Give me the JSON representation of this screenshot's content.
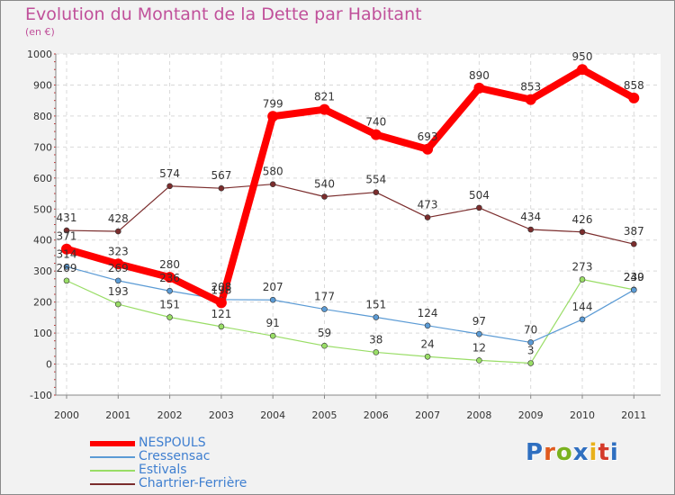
{
  "title": "Evolution du Montant de la Dette par Habitant",
  "subtitle": "(en €)",
  "logo": {
    "text": "Proxiti",
    "colors": [
      "#2f6fc0",
      "#e05a1e",
      "#7ab21f",
      "#2f6fc0",
      "#e8b11a",
      "#d43a2a",
      "#2f6fc0"
    ]
  },
  "chart_data": {
    "type": "line",
    "x": [
      "2000",
      "2001",
      "2002",
      "2003",
      "2004",
      "2005",
      "2006",
      "2007",
      "2008",
      "2009",
      "2010",
      "2011"
    ],
    "ylim": [
      -100,
      1000
    ],
    "yticks": [
      "1000",
      "900",
      "800",
      "700",
      "600",
      "500",
      "400",
      "300",
      "200",
      "100",
      "0",
      "-100"
    ],
    "grid": true,
    "legend_position": "bottom-left",
    "series": [
      {
        "name": "NESPOULS",
        "color": "#ff0000",
        "values": [
          371,
          323,
          280,
          198,
          799,
          821,
          740,
          693,
          890,
          853,
          950,
          858
        ]
      },
      {
        "name": "Cressensac",
        "color": "#5b9bd5",
        "values": [
          314,
          269,
          236,
          208,
          207,
          177,
          151,
          124,
          97,
          70,
          144,
          239
        ]
      },
      {
        "name": "Estivals",
        "color": "#99dd66",
        "values": [
          269,
          193,
          151,
          121,
          91,
          59,
          38,
          24,
          12,
          3,
          273,
          240
        ]
      },
      {
        "name": "Chartrier-Ferrière",
        "color": "#7b2d2d",
        "values": [
          431,
          428,
          574,
          567,
          580,
          540,
          554,
          473,
          504,
          434,
          426,
          387
        ]
      }
    ]
  }
}
